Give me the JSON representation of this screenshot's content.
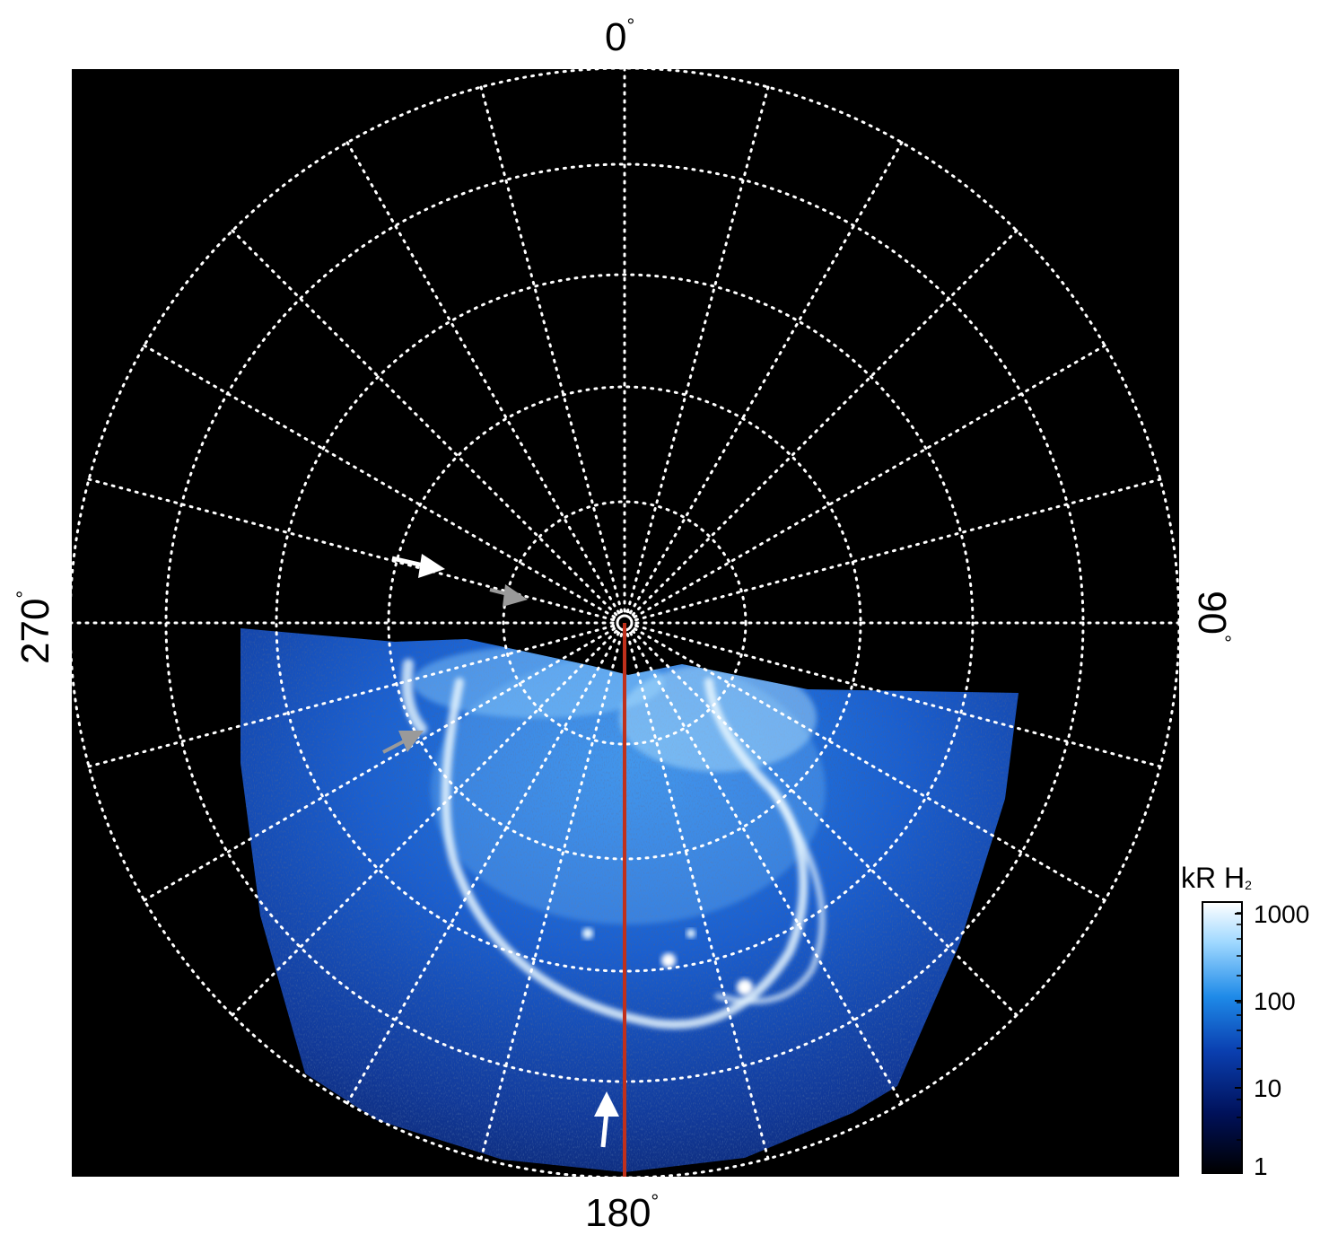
{
  "figure": {
    "labels": {
      "top": "0",
      "bottom": "180",
      "left": "270",
      "right": "90",
      "degree_symbol": "°"
    },
    "colorbar": {
      "title": "kR H",
      "title_subscript": "2",
      "ticks": [
        "1000",
        "100",
        "10",
        "1"
      ],
      "scale": "log",
      "range": [
        1,
        1000
      ],
      "colors": [
        "#000000",
        "#00115a",
        "#0a3fb0",
        "#1e8ae8",
        "#9fd8ff",
        "#ffffff"
      ]
    },
    "grid": {
      "style": "dotted",
      "color": "#ffffff",
      "meridian_step_deg": 15
    },
    "colors": {
      "background": "#000000",
      "aurora": "#1f7ee6",
      "central_line": "#c0301b",
      "arrow_white": "#ffffff",
      "arrow_grey": "#9a9a9a"
    },
    "arrows": [
      {
        "color": "white",
        "direction": "up"
      },
      {
        "color": "white",
        "direction": "right-down"
      },
      {
        "color": "grey",
        "direction": "right-down"
      },
      {
        "color": "grey",
        "direction": "right-up"
      }
    ]
  }
}
